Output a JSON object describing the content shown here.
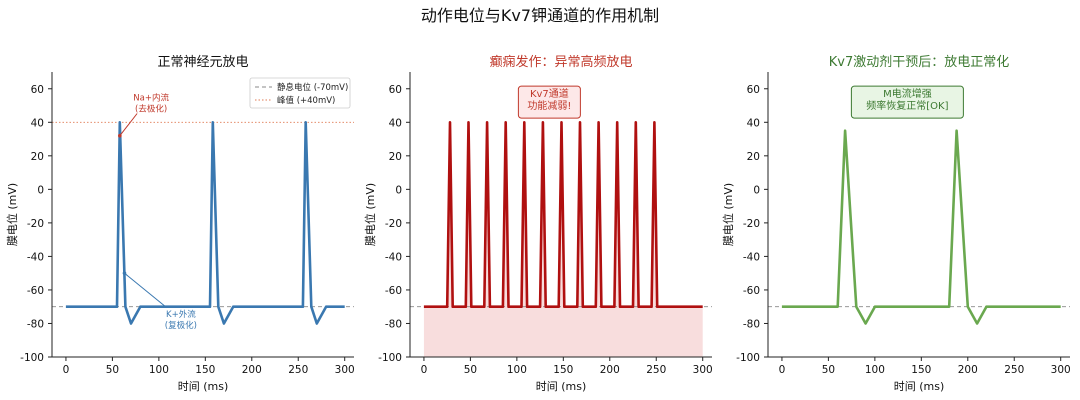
{
  "figure_title": "动作电位与Kv7钾通道的作用机制",
  "chart_data": [
    {
      "type": "line",
      "title": "正常神经元放电",
      "title_color": "#111111",
      "xlabel": "时间 (ms)",
      "ylabel": "膜电位 (mV)",
      "xlim": [
        -15,
        310
      ],
      "ylim": [
        -100,
        70
      ],
      "xticks": [
        0,
        50,
        100,
        150,
        200,
        250,
        300
      ],
      "yticks": [
        -100,
        -80,
        -60,
        -40,
        -20,
        0,
        20,
        40,
        60
      ],
      "line_color": "#3a78b0",
      "fill": false,
      "series": [
        {
          "x": [
            0,
            50,
            55,
            58,
            64,
            70,
            80,
            150,
            155,
            158,
            164,
            170,
            180,
            250,
            255,
            258,
            264,
            270,
            280,
            300
          ],
          "y": [
            -70,
            -70,
            -70,
            40,
            -70,
            -80,
            -70,
            -70,
            -70,
            40,
            -70,
            -80,
            -70,
            -70,
            -70,
            40,
            -70,
            -80,
            -70,
            -70
          ]
        }
      ],
      "reference_lines": [
        {
          "label": "静息电位 (-70mV)",
          "y": -70,
          "style": "dashed",
          "color": "#888888"
        },
        {
          "label": "峰值 (+40mV)",
          "y": 40,
          "style": "dotted",
          "color": "#e07b54"
        }
      ],
      "legend": "top-right",
      "annotations": [
        {
          "lines": [
            "Na+内流",
            "(去极化)"
          ],
          "color": "#c0392b",
          "point": [
            58,
            32
          ],
          "text_at": [
            68,
            53
          ]
        },
        {
          "lines": [
            "K+外流",
            "(复极化)"
          ],
          "color": "#3a78b0",
          "point": [
            63,
            -50
          ],
          "text_at": [
            100,
            -76
          ]
        }
      ]
    },
    {
      "type": "line",
      "title": "癫痫发作：异常高频放电",
      "title_color": "#c0392b",
      "xlabel": "时间 (ms)",
      "ylabel": "膜电位 (mV)",
      "xlim": [
        -15,
        310
      ],
      "ylim": [
        -100,
        70
      ],
      "xticks": [
        0,
        50,
        100,
        150,
        200,
        250,
        300
      ],
      "yticks": [
        -100,
        -80,
        -60,
        -40,
        -20,
        0,
        20,
        40,
        60
      ],
      "line_color": "#b01010",
      "fill": true,
      "fill_color": "#f4c7c7",
      "series": [
        {
          "spikes_start": 28,
          "spikes_interval": 20,
          "spikes_count": 12,
          "spike_peak": 40,
          "spike_trough": -70,
          "x_end": 300
        }
      ],
      "reference_lines": [
        {
          "label": "",
          "y": -70,
          "style": "dashed",
          "color": "#888888"
        }
      ],
      "annotations": [
        {
          "lines": [
            "Kv7通道",
            "功能减弱!"
          ],
          "color": "#c0392b",
          "box_fill": "#fde8e8",
          "box_stroke": "#c0392b",
          "text_at": [
            135,
            55
          ]
        }
      ]
    },
    {
      "type": "line",
      "title": "Kv7激动剂干预后：放电正常化",
      "title_color": "#3d7a32",
      "xlabel": "时间 (ms)",
      "ylabel": "膜电位 (mV)",
      "xlim": [
        -15,
        310
      ],
      "ylim": [
        -100,
        70
      ],
      "xticks": [
        0,
        50,
        100,
        150,
        200,
        250,
        300
      ],
      "yticks": [
        -100,
        -80,
        -60,
        -40,
        -20,
        0,
        20,
        40,
        60
      ],
      "line_color": "#6aa84f",
      "fill": false,
      "series": [
        {
          "x": [
            0,
            60,
            68,
            80,
            90,
            100,
            180,
            188,
            200,
            210,
            220,
            300
          ],
          "y": [
            -70,
            -70,
            35,
            -70,
            -80,
            -70,
            -70,
            35,
            -70,
            -80,
            -70,
            -70
          ]
        }
      ],
      "reference_lines": [
        {
          "label": "",
          "y": -70,
          "style": "dashed",
          "color": "#888888"
        }
      ],
      "annotations": [
        {
          "lines": [
            "M电流增强",
            "频率恢复正常[OK]"
          ],
          "color": "#3d7a32",
          "box_fill": "#e8f5e4",
          "box_stroke": "#3d7a32",
          "text_at": [
            135,
            55
          ]
        }
      ]
    }
  ]
}
